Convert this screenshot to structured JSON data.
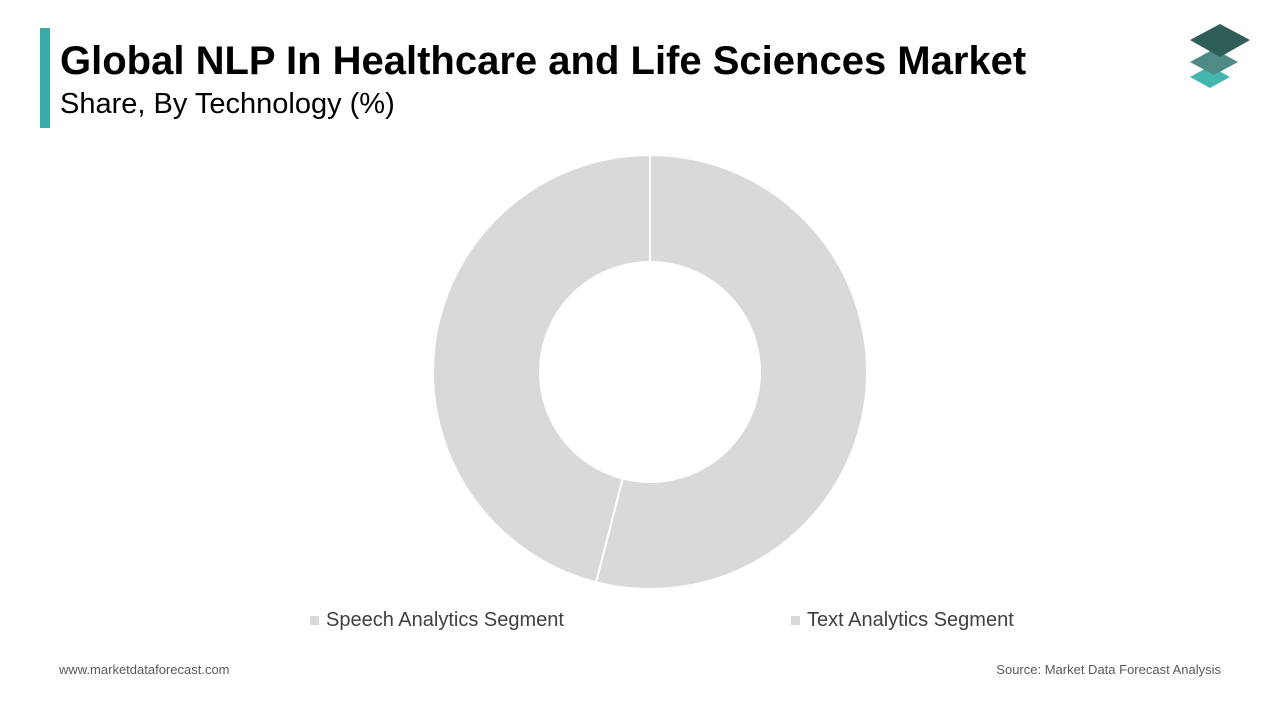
{
  "header": {
    "title": "Global NLP In Healthcare and Life Sciences Market",
    "subtitle": "Share, By Technology (%)"
  },
  "colors": {
    "accent": "#3aa8a5",
    "segment_fill": "#d9d9d9",
    "segment_stroke": "#ffffff",
    "logo_top": "#2f5d57",
    "logo_middle": "#4f8a84",
    "logo_bottom": "#45b5b0"
  },
  "icons": {
    "logo": "stacked-layers-icon"
  },
  "chart_data": {
    "type": "pie",
    "variant": "donut",
    "title": "",
    "categories": [
      "Speech Analytics Segment",
      "Text Analytics Segment"
    ],
    "values": [
      54,
      46
    ],
    "legend_position": "bottom"
  },
  "footer": {
    "website": "www.marketdataforecast.com",
    "source": "Source: Market Data Forecast Analysis"
  }
}
